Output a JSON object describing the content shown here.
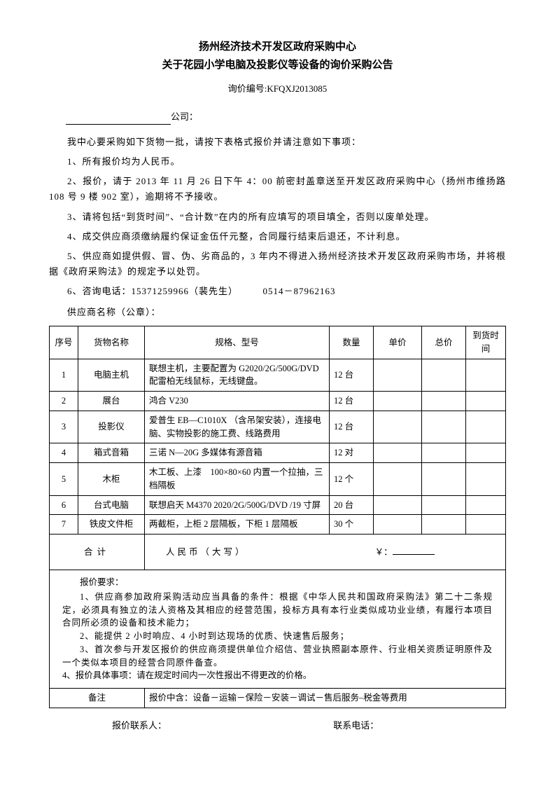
{
  "header": {
    "title_line1": "扬州经济技术开发区政府采购中心",
    "title_line2": "关于花园小学电脑及投影仪等设备的询价采购公告",
    "doc_number_label": "询价编号:",
    "doc_number": "KFQXJ2013085"
  },
  "company_suffix": "公司：",
  "intro": "我中心要采购如下货物一批，请按下表格式报价并请注意如下事项：",
  "clauses": [
    "1、所有报价均为人民币。",
    "2、报价，请于 2013 年 11 月 26 日下午 4：00 前密封盖章送至开发区政府采购中心（扬州市维扬路 108 号 9 楼 902 室），逾期将不予接收。",
    "3、请将包括“到货时间”、“合计数”在内的所有应填写的项目填全，否则以废单处理。",
    "4、成交供应商须缴纳履约保证金伍仟元整，合同履行结束后退还，不计利息。",
    "5、供应商如提供假、冒、伪、劣商品的，3 年内不得进入扬州经济技术开发区政府采购市场，并将根据《政府采购法》的规定予以处罚。",
    "6、咨询电话：15371259966（裴先生）　　　0514－87962163"
  ],
  "supplier_label": "供应商名称（公章）：",
  "table": {
    "headers": {
      "seq": "序号",
      "name": "货物名称",
      "spec": "规格、型号",
      "qty": "数量",
      "unit_price": "单价",
      "total_price": "总价",
      "delivery": "到货时间"
    },
    "rows": [
      {
        "seq": "1",
        "name": "电脑主机",
        "spec": "联想主机，主要配置为 G2020/2G/500G/DVD 配雷柏无线鼠标，无线键盘。",
        "qty": "12 台"
      },
      {
        "seq": "2",
        "name": "展台",
        "spec": "鸿合 V230",
        "qty": "12 台"
      },
      {
        "seq": "3",
        "name": "投影仪",
        "spec": "爱普生 EB—C1010X （含吊架安装），连接电脑、实物投影的施工费、线路费用",
        "qty": "12 台"
      },
      {
        "seq": "4",
        "name": "箱式音箱",
        "spec": "三诺 N—20G 多媒体有源音箱",
        "qty": "12 对"
      },
      {
        "seq": "5",
        "name": "木柜",
        "spec": "木工板、上漆　100×80×60 内置一个拉抽，三档隔板",
        "qty": "12 个"
      },
      {
        "seq": "6",
        "name": "台式电脑",
        "spec": "联想启天 M4370 2020/2G/500G/DVD /19 寸屏",
        "qty": "20 台"
      },
      {
        "seq": "7",
        "name": "铁皮文件柜",
        "spec": "两截柜，上柜 2 层隔板，下柜 1 层隔板",
        "qty": "30 个"
      }
    ],
    "sum_label": "合计",
    "sum_rmb": "人民币（大写）",
    "sum_y": "￥："
  },
  "requirements": {
    "title": "报价要求：",
    "items": [
      "1、供应商参加政府采购活动应当具备的条件：根据《中华人民共和国政府采购法》第二十二条规定，必须具有独立的法人资格及其相应的经营范围，投标方具有本行业类似成功业业绩，有履行本项目合同所必须的设备和技术能力；",
      "2、能提供 2 小时响应、4 小时到达现场的优质、快速售后服务；",
      "3、首次参与开发区报价的供应商须提供单位介绍信、营业执照副本原件、行业相关资质证明原件及一个类似本项目的经营合同原件备查。"
    ],
    "spec_note": "4、报价具体事项：请在规定时间内一次性报出不得更改的价格。"
  },
  "note": {
    "label": "备注",
    "content": "报价中含：设备－运输－保险－安装－调试－售后服务–税金等费用"
  },
  "footer": {
    "contact_name": "报价联系人：",
    "contact_phone": "联系电话："
  }
}
